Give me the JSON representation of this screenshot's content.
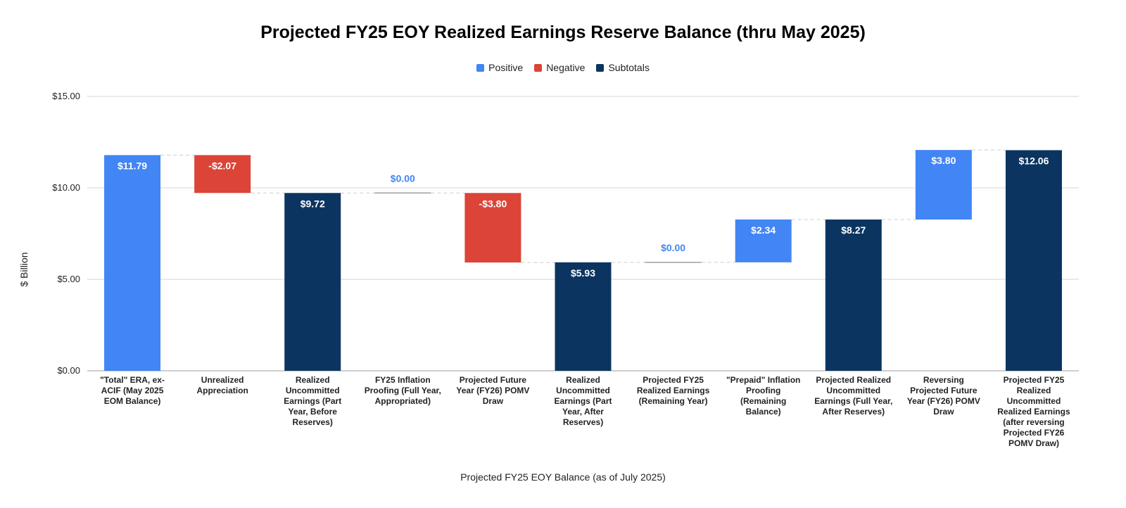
{
  "chart_data": {
    "type": "waterfall",
    "title": "Projected FY25 EOY Realized Earnings Reserve Balance (thru May 2025)",
    "xlabel": "Projected FY25 EOY Balance (as of July 2025)",
    "ylabel": "$ Billion",
    "ylim": [
      0,
      15
    ],
    "yticks": [
      0,
      5,
      10,
      15
    ],
    "ytick_labels": [
      "$0.00",
      "$5.00",
      "$10.00",
      "$15.00"
    ],
    "grid": true,
    "legend_position": "top",
    "legend": [
      {
        "name": "Positive",
        "color": "#4285f4"
      },
      {
        "name": "Negative",
        "color": "#db4437"
      },
      {
        "name": "Subtotals",
        "color": "#0b3560"
      }
    ],
    "categories": [
      "\"Total\" ERA, ex-ACIF (May 2025 EOM Balance)",
      "Unrealized Appreciation",
      "Realized Uncommitted Earnings (Part Year, Before Reserves)",
      "FY25 Inflation Proofing (Full Year, Appropriated)",
      "Projected Future Year (FY26) POMV Draw",
      "Realized Uncommitted Earnings (Part Year, After Reserves)",
      "Projected FY25 Realized Earnings (Remaining Year)",
      "\"Prepaid\" Inflation Proofing (Remaining Balance)",
      "Projected Realized Uncommitted Earnings (Full Year, After Reserves)",
      "Reversing Projected Future Year (FY26) POMV Draw",
      "Projected FY25 Realized Uncommitted Realized Earnings (after reversing Projected FY26 POMV Draw)"
    ],
    "category_lines": [
      [
        "\"Total\" ERA, ex-",
        "ACIF (May 2025",
        "EOM Balance)"
      ],
      [
        "Unrealized",
        "Appreciation"
      ],
      [
        "Realized",
        "Uncommitted",
        "Earnings (Part",
        "Year, Before",
        "Reserves)"
      ],
      [
        "FY25 Inflation",
        "Proofing (Full Year,",
        "Appropriated)"
      ],
      [
        "Projected Future",
        "Year (FY26) POMV",
        "Draw"
      ],
      [
        "Realized",
        "Uncommitted",
        "Earnings (Part",
        "Year, After",
        "Reserves)"
      ],
      [
        "Projected FY25",
        "Realized Earnings",
        "(Remaining Year)"
      ],
      [
        "\"Prepaid\" Inflation",
        "Proofing",
        "(Remaining",
        "Balance)"
      ],
      [
        "Projected Realized",
        "Uncommitted",
        "Earnings (Full Year,",
        "After Reserves)"
      ],
      [
        "Reversing",
        "Projected Future",
        "Year (FY26) POMV",
        "Draw"
      ],
      [
        "Projected FY25",
        "Realized",
        "Uncommitted",
        "Realized Earnings",
        "(after reversing",
        "Projected FY26",
        "POMV Draw)"
      ]
    ],
    "values": [
      11.79,
      -2.07,
      9.72,
      0.0,
      -3.8,
      5.93,
      0.0,
      2.34,
      8.27,
      3.8,
      12.06
    ],
    "kinds": [
      "positive",
      "negative",
      "subtotal",
      "positive",
      "negative",
      "subtotal",
      "positive",
      "positive",
      "subtotal",
      "positive",
      "subtotal"
    ],
    "value_labels": [
      "$11.79",
      "-$2.07",
      "$9.72",
      "$0.00",
      "-$3.80",
      "$5.93",
      "$0.00",
      "$2.34",
      "$8.27",
      "$3.80",
      "$12.06"
    ]
  }
}
